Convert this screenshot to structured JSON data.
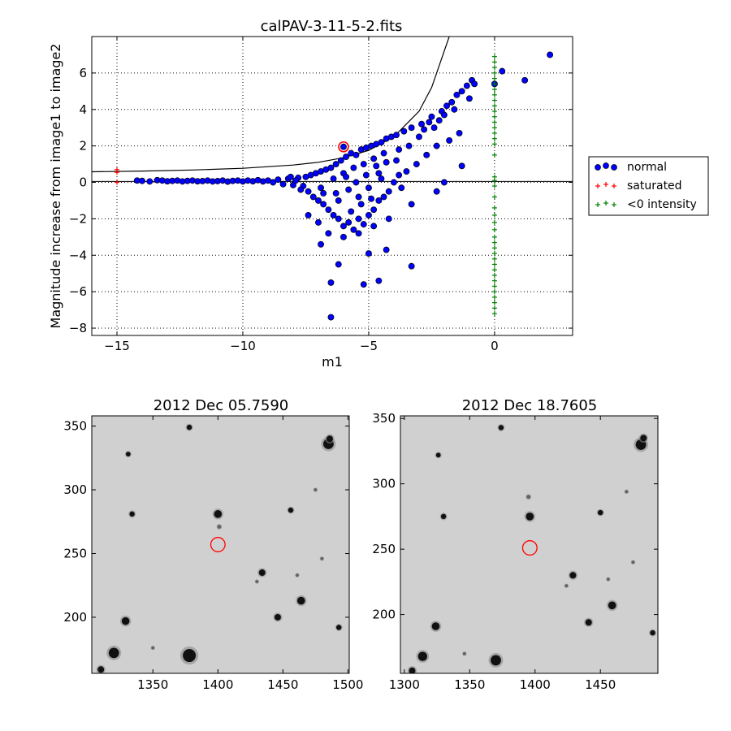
{
  "figure": {
    "background": "#ffffff"
  },
  "chart_data": [
    {
      "type": "scatter",
      "title": "calPAV-3-11-5-2.fits",
      "xlabel": "m1",
      "ylabel": "Magnitude increase from image1 to image2",
      "xlim": [
        -16,
        3.1
      ],
      "ylim": [
        -8.4,
        8
      ],
      "xticks": [
        -15,
        -10,
        -5,
        0
      ],
      "xtick_labels": [
        "−15",
        "−10",
        "−5",
        "0"
      ],
      "yticks": [
        -8,
        -6,
        -4,
        -2,
        0,
        2,
        4,
        6
      ],
      "ytick_labels": [
        "−8",
        "−6",
        "−4",
        "−2",
        "0",
        "2",
        "4",
        "6"
      ],
      "grid": true,
      "legend_position": "right-outside",
      "colors": {
        "normal": "#0000ff",
        "saturated": "#ff0000",
        "negative": "#008000",
        "highlight": "#ff0000"
      },
      "series": [
        {
          "name": "normal",
          "marker": "circle",
          "points": [
            [
              -14.2,
              0.1
            ],
            [
              -14.0,
              0.08
            ],
            [
              -13.7,
              0.05
            ],
            [
              -13.4,
              0.12
            ],
            [
              -13.2,
              0.1
            ],
            [
              -13.0,
              0.06
            ],
            [
              -12.8,
              0.08
            ],
            [
              -12.6,
              0.1
            ],
            [
              -12.4,
              0.05
            ],
            [
              -12.2,
              0.08
            ],
            [
              -12.0,
              0.1
            ],
            [
              -11.8,
              0.06
            ],
            [
              -11.6,
              0.07
            ],
            [
              -11.4,
              0.1
            ],
            [
              -11.2,
              0.05
            ],
            [
              -11.0,
              0.07
            ],
            [
              -10.8,
              0.1
            ],
            [
              -10.6,
              0.04
            ],
            [
              -10.4,
              0.08
            ],
            [
              -10.2,
              0.1
            ],
            [
              -10.0,
              0.05
            ],
            [
              -9.8,
              0.1
            ],
            [
              -9.6,
              0.06
            ],
            [
              -9.4,
              0.12
            ],
            [
              -9.2,
              0.05
            ],
            [
              -9.0,
              0.1
            ],
            [
              -8.8,
              0.0
            ],
            [
              -8.6,
              0.15
            ],
            [
              -8.4,
              -0.1
            ],
            [
              -8.2,
              0.2
            ],
            [
              -8.0,
              -0.15
            ],
            [
              -7.8,
              0.25
            ],
            [
              -7.6,
              -0.2
            ],
            [
              -7.5,
              0.3
            ],
            [
              -7.4,
              -0.5
            ],
            [
              -7.3,
              0.4
            ],
            [
              -7.2,
              -0.8
            ],
            [
              -7.1,
              0.5
            ],
            [
              -7.0,
              -1.0
            ],
            [
              -6.9,
              0.6
            ],
            [
              -6.8,
              -1.2
            ],
            [
              -6.7,
              0.7
            ],
            [
              -6.6,
              -1.5
            ],
            [
              -6.5,
              0.8
            ],
            [
              -6.4,
              -1.8
            ],
            [
              -6.3,
              1.0
            ],
            [
              -6.2,
              -2.0
            ],
            [
              -6.1,
              1.2
            ],
            [
              -6.0,
              -2.4
            ],
            [
              -5.9,
              1.4
            ],
            [
              -5.8,
              -2.2
            ],
            [
              -5.7,
              1.6
            ],
            [
              -5.6,
              -2.6
            ],
            [
              -5.5,
              1.5
            ],
            [
              -5.4,
              -2.0
            ],
            [
              -5.3,
              1.8
            ],
            [
              -5.2,
              -2.3
            ],
            [
              -5.1,
              1.9
            ],
            [
              -5.0,
              -1.8
            ],
            [
              -4.9,
              2.0
            ],
            [
              -4.8,
              -1.5
            ],
            [
              -4.7,
              2.1
            ],
            [
              -4.6,
              -1.0
            ],
            [
              -4.5,
              2.2
            ],
            [
              -4.4,
              -0.8
            ],
            [
              -4.3,
              2.4
            ],
            [
              -4.2,
              -0.5
            ],
            [
              -4.1,
              2.5
            ],
            [
              -4.0,
              0.0
            ],
            [
              -3.9,
              2.6
            ],
            [
              -3.8,
              0.4
            ],
            [
              -3.6,
              2.8
            ],
            [
              -3.5,
              0.6
            ],
            [
              -3.3,
              3.0
            ],
            [
              -3.1,
              1.0
            ],
            [
              -2.9,
              3.2
            ],
            [
              -2.7,
              1.5
            ],
            [
              -2.5,
              3.6
            ],
            [
              -2.3,
              2.0
            ],
            [
              -2.1,
              3.9
            ],
            [
              -1.9,
              4.2
            ],
            [
              -1.7,
              4.4
            ],
            [
              -1.5,
              4.8
            ],
            [
              -1.3,
              5.0
            ],
            [
              -1.1,
              5.3
            ],
            [
              -0.9,
              5.6
            ],
            [
              -1.8,
              2.3
            ],
            [
              -1.4,
              2.7
            ],
            [
              -1.3,
              0.9
            ],
            [
              -2.3,
              -0.5
            ],
            [
              -3.3,
              -1.2
            ],
            [
              -3.3,
              -4.6
            ],
            [
              -4.3,
              -3.7
            ],
            [
              -4.6,
              -5.4
            ],
            [
              -5.0,
              -3.9
            ],
            [
              -5.2,
              -5.6
            ],
            [
              -6.2,
              -4.5
            ],
            [
              -6.5,
              -5.5
            ],
            [
              -6.5,
              -7.4
            ],
            [
              -6.9,
              -3.4
            ],
            [
              -6.0,
              -3.0
            ],
            [
              -5.4,
              -2.8
            ],
            [
              -4.8,
              -2.4
            ],
            [
              -4.2,
              -2.0
            ],
            [
              -7.4,
              -1.8
            ],
            [
              -7.0,
              -2.2
            ],
            [
              -6.6,
              -2.8
            ],
            [
              -6.8,
              -0.6
            ],
            [
              -6.4,
              0.2
            ],
            [
              -6.0,
              0.5
            ],
            [
              -5.6,
              0.8
            ],
            [
              -5.2,
              1.0
            ],
            [
              -4.8,
              1.3
            ],
            [
              -4.4,
              1.6
            ],
            [
              -5.8,
              -0.4
            ],
            [
              -5.4,
              -0.8
            ],
            [
              -5.0,
              -0.3
            ],
            [
              -4.6,
              0.5
            ],
            [
              -6.2,
              -1.0
            ],
            [
              -5.7,
              -1.6
            ],
            [
              -5.3,
              -1.2
            ],
            [
              -4.9,
              -0.9
            ],
            [
              -4.5,
              0.2
            ],
            [
              -3.8,
              1.8
            ],
            [
              -3.4,
              2.0
            ],
            [
              -3.0,
              2.5
            ],
            [
              -2.8,
              2.9
            ],
            [
              -2.6,
              3.3
            ],
            [
              -2.4,
              3.0
            ],
            [
              -2.2,
              3.4
            ],
            [
              -2.0,
              3.7
            ],
            [
              -1.6,
              4.0
            ],
            [
              -7.7,
              -0.4
            ],
            [
              -8.1,
              0.3
            ],
            [
              -7.9,
              0.1
            ],
            [
              -6.9,
              -0.3
            ],
            [
              -6.3,
              -0.6
            ],
            [
              -5.9,
              0.3
            ],
            [
              -5.5,
              0.0
            ],
            [
              -5.1,
              0.4
            ],
            [
              -4.7,
              0.9
            ],
            [
              -4.3,
              1.1
            ],
            [
              -3.9,
              1.2
            ],
            [
              -3.7,
              -0.3
            ],
            [
              -2.0,
              -0.0
            ],
            [
              -1.0,
              4.6
            ],
            [
              -0.8,
              5.4
            ],
            [
              1.2,
              5.6
            ],
            [
              2.2,
              7.0
            ],
            [
              0.3,
              6.1
            ],
            [
              0.0,
              5.4
            ],
            [
              -6.0,
              1.95
            ]
          ]
        },
        {
          "name": "saturated",
          "marker": "plus",
          "points": [
            [
              -15,
              0.55
            ],
            [
              -15,
              0.7
            ],
            [
              -15,
              0.0
            ]
          ]
        },
        {
          "name": "<0 intensity",
          "marker": "plus",
          "points": [
            [
              0,
              6.9
            ],
            [
              0,
              6.6
            ],
            [
              0,
              6.3
            ],
            [
              0,
              6.0
            ],
            [
              0,
              5.7
            ],
            [
              0,
              5.4
            ],
            [
              0,
              5.1
            ],
            [
              0,
              4.8
            ],
            [
              0,
              4.5
            ],
            [
              0,
              4.2
            ],
            [
              0,
              3.9
            ],
            [
              0,
              3.6
            ],
            [
              0,
              3.3
            ],
            [
              0,
              3.0
            ],
            [
              0,
              2.7
            ],
            [
              0,
              2.4
            ],
            [
              0,
              2.1
            ],
            [
              0,
              1.5
            ],
            [
              0,
              0.3
            ],
            [
              0,
              0.1
            ],
            [
              0,
              -0.2
            ],
            [
              0,
              -0.8
            ],
            [
              0,
              -1.4
            ],
            [
              0,
              -1.8
            ],
            [
              0,
              -2.2
            ],
            [
              0,
              -2.6
            ],
            [
              0,
              -3.0
            ],
            [
              0,
              -3.3
            ],
            [
              0,
              -3.6
            ],
            [
              0,
              -3.9
            ],
            [
              0,
              -4.2
            ],
            [
              0,
              -4.5
            ],
            [
              0,
              -4.8
            ],
            [
              0,
              -5.1
            ],
            [
              0,
              -5.4
            ],
            [
              0,
              -5.7
            ],
            [
              0,
              -6.0
            ],
            [
              0,
              -6.3
            ],
            [
              0,
              -6.6
            ],
            [
              0,
              -6.9
            ],
            [
              0,
              -7.2
            ]
          ]
        }
      ],
      "highlight_point": [
        -6.0,
        1.95
      ],
      "reference_lines": {
        "horizontal_y": 0.05,
        "curve": [
          [
            -16,
            0.58
          ],
          [
            -14,
            0.62
          ],
          [
            -12,
            0.68
          ],
          [
            -10,
            0.77
          ],
          [
            -8,
            0.95
          ],
          [
            -7,
            1.1
          ],
          [
            -6,
            1.35
          ],
          [
            -5,
            1.75
          ],
          [
            -4,
            2.5
          ],
          [
            -3,
            3.9
          ],
          [
            -2.5,
            5.2
          ],
          [
            -2.1,
            6.8
          ],
          [
            -1.8,
            8.0
          ]
        ]
      },
      "legend": [
        {
          "label": "normal",
          "color": "#0000ff",
          "marker": "circle"
        },
        {
          "label": "saturated",
          "color": "#ff0000",
          "marker": "plus"
        },
        {
          "label": "<0 intensity",
          "color": "#008000",
          "marker": "plus"
        }
      ]
    },
    {
      "type": "image",
      "title": "2012 Dec 05.7590",
      "xlim": [
        1303,
        1501
      ],
      "ylim": [
        156,
        358
      ],
      "xticks": [
        1350,
        1400,
        1450,
        1500
      ],
      "xtick_labels": [
        "1350",
        "1400",
        "1450",
        "1500"
      ],
      "yticks": [
        200,
        250,
        300,
        350
      ],
      "ytick_labels": [
        "200",
        "250",
        "300",
        "350"
      ],
      "marker_circle": {
        "x": 1400,
        "y": 257,
        "r": 5.5,
        "color": "#ff0000"
      },
      "stars": [
        [
          1378,
          170,
          5
        ],
        [
          1320,
          172,
          4
        ],
        [
          1329,
          197,
          3
        ],
        [
          1464,
          213,
          3
        ],
        [
          1446,
          200,
          2.5
        ],
        [
          1434,
          235,
          2.5
        ],
        [
          1400,
          281,
          3
        ],
        [
          1334,
          281,
          2
        ],
        [
          1485,
          336,
          4
        ],
        [
          1486,
          340,
          2.5
        ],
        [
          1378,
          349,
          2
        ],
        [
          1331,
          328,
          1.8
        ],
        [
          1310,
          159,
          2.5
        ],
        [
          1456,
          284,
          2
        ],
        [
          1401,
          271,
          1.5
        ],
        [
          1493,
          192,
          2
        ],
        [
          1480,
          246,
          1.2
        ],
        [
          1461,
          233,
          1.2
        ],
        [
          1350,
          176,
          1.2
        ],
        [
          1475,
          300,
          1.2
        ],
        [
          1430,
          228,
          1.2
        ]
      ]
    },
    {
      "type": "image",
      "title": "2012 Dec 18.7605",
      "xlim": [
        1297,
        1494
      ],
      "ylim": [
        155,
        352
      ],
      "xticks": [
        1300,
        1350,
        1400,
        1450
      ],
      "xtick_labels": [
        "1300",
        "1350",
        "1400",
        "1450"
      ],
      "yticks": [
        200,
        250,
        300,
        350
      ],
      "ytick_labels": [
        "200",
        "250",
        "300",
        "350"
      ],
      "marker_circle": {
        "x": 1396,
        "y": 251,
        "r": 5.5,
        "color": "#ff0000"
      },
      "stars": [
        [
          1370,
          165,
          4
        ],
        [
          1314,
          168,
          3.5
        ],
        [
          1324,
          191,
          3
        ],
        [
          1459,
          207,
          3
        ],
        [
          1441,
          194,
          2.5
        ],
        [
          1429,
          230,
          2.5
        ],
        [
          1396,
          275,
          3
        ],
        [
          1330,
          275,
          2
        ],
        [
          1481,
          330,
          4
        ],
        [
          1483,
          335,
          2.5
        ],
        [
          1374,
          343,
          2
        ],
        [
          1326,
          322,
          1.8
        ],
        [
          1306,
          157,
          2.5
        ],
        [
          1450,
          278,
          2
        ],
        [
          1395,
          290,
          1.5
        ],
        [
          1490,
          186,
          2
        ],
        [
          1475,
          240,
          1.2
        ],
        [
          1456,
          227,
          1.2
        ],
        [
          1346,
          170,
          1.2
        ],
        [
          1470,
          294,
          1.2
        ],
        [
          1424,
          222,
          1.2
        ]
      ]
    }
  ]
}
